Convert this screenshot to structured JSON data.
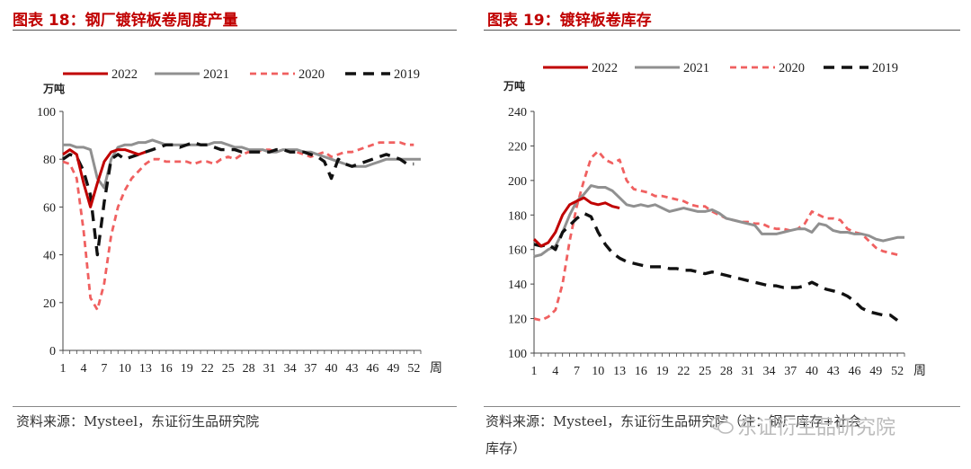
{
  "colors": {
    "s2022": "#c00000",
    "s2021": "#909090",
    "s2020": "#f06060",
    "s2019": "#111111",
    "title": "#c00000"
  },
  "left": {
    "title": "图表 18：钢厂镀锌板卷周度产量",
    "source": "资料来源：Mysteel，东证衍生品研究院"
  },
  "right": {
    "title": "图表 19：镀锌板卷库存",
    "source": "资料来源：Mysteel，东证衍生品研究院（注：钢厂库存+社会",
    "source2": "库存）"
  },
  "watermark": "东证衍生品研究院",
  "chart_data": [
    {
      "type": "line",
      "title": "钢厂镀锌板卷周度产量",
      "ylabel": "万吨",
      "xlabel": "周",
      "ylim": [
        0,
        100
      ],
      "yticks": [
        0,
        20,
        40,
        60,
        80,
        100
      ],
      "xlim": [
        1,
        53
      ],
      "xticks": [
        1,
        4,
        7,
        10,
        13,
        16,
        19,
        22,
        25,
        28,
        31,
        34,
        37,
        40,
        43,
        46,
        49,
        52
      ],
      "series": [
        {
          "name": "2022",
          "key": "s2022",
          "style": "solid",
          "x": [
            1,
            2,
            3,
            4,
            5,
            6,
            7,
            8,
            9,
            10,
            11,
            12,
            13
          ],
          "values": [
            82,
            84,
            82,
            70,
            60,
            70,
            79,
            83,
            84,
            84,
            83,
            82,
            83
          ]
        },
        {
          "name": "2021",
          "key": "s2021",
          "style": "solid",
          "x": [
            1,
            2,
            3,
            4,
            5,
            6,
            7,
            8,
            9,
            10,
            11,
            12,
            13,
            14,
            15,
            16,
            17,
            18,
            19,
            20,
            21,
            22,
            23,
            24,
            25,
            26,
            27,
            28,
            29,
            30,
            31,
            32,
            33,
            34,
            35,
            36,
            37,
            38,
            39,
            40,
            41,
            42,
            43,
            44,
            45,
            46,
            47,
            48,
            49,
            50,
            51,
            52,
            53
          ],
          "values": [
            86,
            86,
            85,
            85,
            84,
            72,
            68,
            80,
            85,
            86,
            86,
            87,
            87,
            88,
            87,
            86,
            86,
            86,
            86,
            86,
            86,
            86,
            87,
            87,
            86,
            85,
            85,
            84,
            84,
            84,
            83,
            83,
            84,
            84,
            84,
            83,
            83,
            82,
            81,
            80,
            79,
            78,
            77,
            77,
            77,
            78,
            79,
            80,
            80,
            80,
            80,
            80,
            80
          ]
        },
        {
          "name": "2020",
          "key": "s2020",
          "style": "dashed",
          "x": [
            1,
            2,
            3,
            4,
            5,
            6,
            7,
            8,
            9,
            10,
            11,
            12,
            13,
            14,
            15,
            16,
            17,
            18,
            19,
            20,
            21,
            22,
            23,
            24,
            25,
            26,
            27,
            28,
            29,
            30,
            31,
            32,
            33,
            34,
            35,
            36,
            37,
            38,
            39,
            40,
            41,
            42,
            43,
            44,
            45,
            46,
            47,
            48,
            49,
            50,
            51,
            52
          ],
          "values": [
            79,
            78,
            72,
            50,
            22,
            17,
            28,
            48,
            60,
            67,
            72,
            75,
            78,
            80,
            80,
            79,
            79,
            79,
            79,
            78,
            79,
            79,
            78,
            80,
            81,
            80,
            82,
            83,
            83,
            84,
            84,
            83,
            84,
            83,
            83,
            82,
            81,
            82,
            83,
            81,
            82,
            83,
            83,
            84,
            85,
            86,
            87,
            87,
            87,
            87,
            86,
            86
          ]
        },
        {
          "name": "2019",
          "key": "s2019",
          "style": "dashed",
          "x": [
            1,
            2,
            3,
            4,
            5,
            6,
            7,
            8,
            9,
            10,
            11,
            12,
            13,
            14,
            15,
            16,
            17,
            18,
            19,
            20,
            21,
            22,
            23,
            24,
            25,
            26,
            27,
            28,
            29,
            30,
            31,
            32,
            33,
            34,
            35,
            36,
            37,
            38,
            39,
            40,
            41,
            42,
            43,
            44,
            45,
            46,
            47,
            48,
            49,
            50,
            51,
            52
          ],
          "values": [
            80,
            82,
            81,
            75,
            65,
            40,
            62,
            80,
            82,
            80,
            81,
            82,
            83,
            84,
            85,
            86,
            86,
            85,
            86,
            87,
            86,
            86,
            85,
            84,
            84,
            84,
            83,
            83,
            83,
            83,
            83,
            84,
            84,
            83,
            83,
            83,
            82,
            81,
            79,
            72,
            80,
            78,
            77,
            78,
            79,
            80,
            81,
            82,
            81,
            80,
            78,
            78
          ]
        }
      ],
      "legend": [
        "2022",
        "2021",
        "2020",
        "2019"
      ]
    },
    {
      "type": "line",
      "title": "镀锌板卷库存",
      "ylabel": "万吨",
      "xlabel": "周",
      "ylim": [
        100,
        240
      ],
      "yticks": [
        100,
        120,
        140,
        160,
        180,
        200,
        220,
        240
      ],
      "xlim": [
        1,
        53
      ],
      "xticks": [
        1,
        4,
        7,
        10,
        13,
        16,
        19,
        22,
        25,
        28,
        31,
        34,
        37,
        40,
        43,
        46,
        49,
        52
      ],
      "series": [
        {
          "name": "2022",
          "key": "s2022",
          "style": "solid",
          "x": [
            1,
            2,
            3,
            4,
            5,
            6,
            7,
            8,
            9,
            10,
            11,
            12,
            13
          ],
          "values": [
            166,
            162,
            164,
            170,
            180,
            186,
            188,
            190,
            187,
            186,
            187,
            185,
            184
          ]
        },
        {
          "name": "2021",
          "key": "s2021",
          "style": "solid",
          "x": [
            1,
            2,
            3,
            4,
            5,
            6,
            7,
            8,
            9,
            10,
            11,
            12,
            13,
            14,
            15,
            16,
            17,
            18,
            19,
            20,
            21,
            22,
            23,
            24,
            25,
            26,
            27,
            28,
            29,
            30,
            31,
            32,
            33,
            34,
            35,
            36,
            37,
            38,
            39,
            40,
            41,
            42,
            43,
            44,
            45,
            46,
            47,
            48,
            49,
            50,
            51,
            52,
            53
          ],
          "values": [
            156,
            157,
            160,
            162,
            170,
            180,
            188,
            192,
            197,
            196,
            196,
            194,
            190,
            186,
            185,
            186,
            185,
            186,
            184,
            182,
            183,
            184,
            183,
            182,
            182,
            183,
            181,
            178,
            177,
            176,
            175,
            174,
            169,
            169,
            169,
            170,
            171,
            172,
            172,
            170,
            175,
            174,
            171,
            170,
            170,
            169,
            169,
            168,
            166,
            165,
            166,
            167,
            167
          ]
        },
        {
          "name": "2020",
          "key": "s2020",
          "style": "dashed",
          "x": [
            1,
            2,
            3,
            4,
            5,
            6,
            7,
            8,
            9,
            10,
            11,
            12,
            13,
            14,
            15,
            16,
            17,
            18,
            19,
            20,
            21,
            22,
            23,
            24,
            25,
            26,
            27,
            28,
            29,
            30,
            31,
            32,
            33,
            34,
            35,
            36,
            37,
            38,
            39,
            40,
            41,
            42,
            43,
            44,
            45,
            46,
            47,
            48,
            49,
            50,
            51,
            52
          ],
          "values": [
            120,
            119,
            121,
            125,
            140,
            165,
            185,
            200,
            213,
            217,
            212,
            210,
            212,
            200,
            195,
            194,
            193,
            191,
            191,
            190,
            189,
            188,
            186,
            185,
            185,
            182,
            180,
            178,
            177,
            176,
            176,
            175,
            175,
            173,
            172,
            172,
            171,
            172,
            175,
            182,
            180,
            178,
            178,
            177,
            172,
            170,
            169,
            165,
            161,
            159,
            158,
            157
          ]
        },
        {
          "name": "2019",
          "key": "s2019",
          "style": "dashed",
          "x": [
            1,
            2,
            3,
            4,
            5,
            6,
            7,
            8,
            9,
            10,
            11,
            12,
            13,
            14,
            15,
            16,
            17,
            18,
            19,
            20,
            21,
            22,
            23,
            24,
            25,
            26,
            27,
            28,
            29,
            30,
            31,
            32,
            33,
            34,
            35,
            36,
            37,
            38,
            39,
            40,
            41,
            42,
            43,
            44,
            45,
            46,
            47,
            48,
            49,
            50,
            51,
            52
          ],
          "values": [
            163,
            162,
            163,
            160,
            170,
            174,
            178,
            181,
            179,
            170,
            163,
            158,
            155,
            153,
            152,
            151,
            150,
            150,
            150,
            149,
            149,
            148,
            148,
            147,
            146,
            147,
            146,
            145,
            144,
            143,
            142,
            141,
            140,
            139,
            139,
            138,
            138,
            138,
            139,
            141,
            139,
            137,
            136,
            135,
            133,
            130,
            126,
            124,
            123,
            122,
            122,
            119
          ]
        }
      ],
      "legend": [
        "2022",
        "2021",
        "2020",
        "2019"
      ]
    }
  ]
}
